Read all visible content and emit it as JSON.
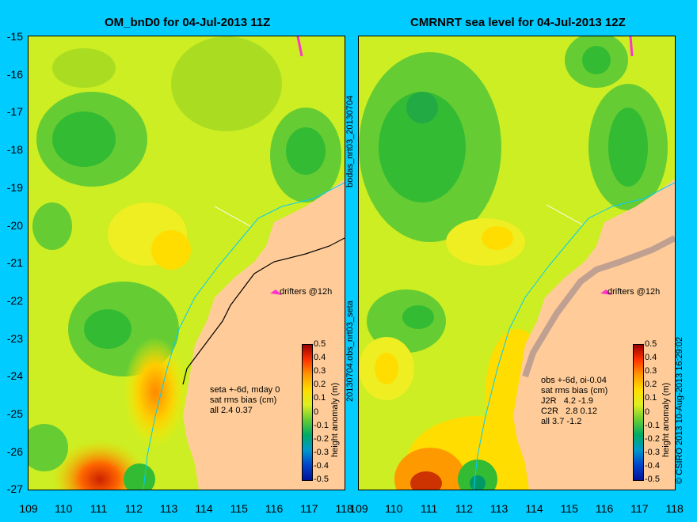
{
  "left_panel": {
    "title": "OM_bnD0 for 04-Jul-2013 11Z",
    "drifters_label": "drifters @12h",
    "stats": "seta +-6d, mday 0\nsat rms bias (cm)\nall 2.4 0.37"
  },
  "right_panel": {
    "title": "CMRNRT sea level  for 04-Jul-2013 12Z",
    "drifters_label": "drifters @12h",
    "stats": "obs +-6d, oi-0.04\nsat rms bias (cm)\nJ2R   4.2 -1.9\nC2R   2.8 0.12\nall 3.7 -1.2"
  },
  "y_axis_labels": [
    "-15",
    "-16",
    "-17",
    "-18",
    "-19",
    "-20",
    "-21",
    "-22",
    "-23",
    "-24",
    "-25",
    "-26",
    "-27"
  ],
  "x_axis_labels": [
    "109",
    "110",
    "111",
    "112",
    "113",
    "114",
    "115",
    "116",
    "117",
    "118"
  ],
  "x_axis_labels_right": [
    "109",
    "110",
    "111",
    "112",
    "113",
    "114",
    "115",
    "116",
    "117",
    "118"
  ],
  "colorbar": {
    "ticks": [
      "0.5",
      "0.4",
      "0.3",
      "0.2",
      "0.1",
      "0",
      "-0.1",
      "-0.2",
      "-0.3",
      "-0.4",
      "-0.5"
    ],
    "label": "height anomaly (m)"
  },
  "middle_text_top": "bodas_nrt03_20130704",
  "middle_text_bottom": "20130704.obs_nrt03_seta",
  "credit_text": "© CSIRO 2013  10-Aug-2013 16:29:02",
  "colors": {
    "background": "#00ccff",
    "land": "#ffcc99",
    "drifter": "#ff33cc",
    "contour_line": "#00ccff",
    "shelf_grey": "#c0a090"
  }
}
